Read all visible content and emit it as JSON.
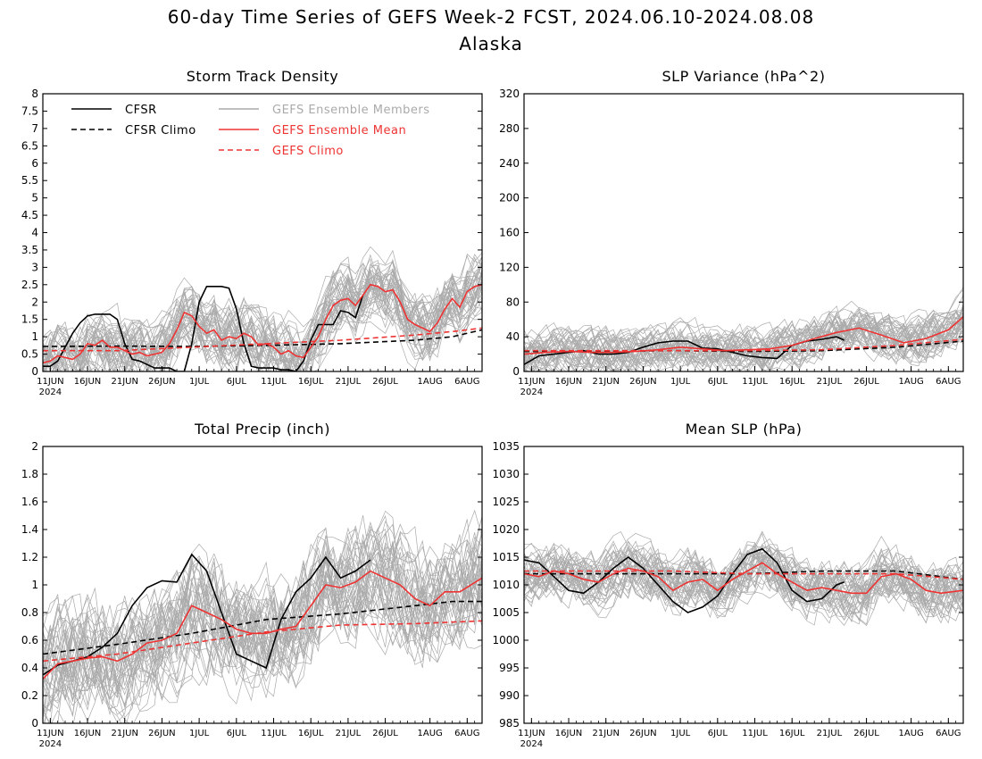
{
  "figure": {
    "title_line1": "60-day Time Series of GEFS Week-2 FCST, 2024.06.10-2024.08.08",
    "title_line2": "Alaska"
  },
  "colors": {
    "cfsr": "#000000",
    "members": "#aaaaaa",
    "ens_mean": "#ee3333",
    "frame": "#000000"
  },
  "legend": {
    "cfsr": "CFSR",
    "cfsr_climo": "CFSR Climo",
    "members": "GEFS Ensemble Members",
    "ens_mean": "GEFS Ensemble Mean",
    "gefs_climo": "GEFS Climo"
  },
  "x_axis": {
    "ticks": [
      {
        "day": 1,
        "label": "11JUN"
      },
      {
        "day": 6,
        "label": "16JUN"
      },
      {
        "day": 11,
        "label": "21JUN"
      },
      {
        "day": 16,
        "label": "26JUN"
      },
      {
        "day": 21,
        "label": "1JUL"
      },
      {
        "day": 26,
        "label": "6JUL"
      },
      {
        "day": 31,
        "label": "11JUL"
      },
      {
        "day": 36,
        "label": "16JUL"
      },
      {
        "day": 41,
        "label": "21JUL"
      },
      {
        "day": 46,
        "label": "26JUL"
      },
      {
        "day": 52,
        "label": "1AUG"
      },
      {
        "day": 57,
        "label": "6AUG"
      }
    ],
    "year": "2024",
    "range": [
      0,
      59
    ]
  },
  "chart_data": [
    {
      "type": "line",
      "title": "Storm Track Density",
      "ylim": [
        0,
        8
      ],
      "yticks": [
        "0",
        "0.5",
        "1",
        "1.5",
        "2",
        "2.5",
        "3",
        "3.5",
        "4",
        "4.5",
        "5",
        "5.5",
        "6",
        "6.5",
        "7",
        "7.5",
        "8"
      ],
      "x_unit": "days after 2024.06.10",
      "member_spread": {
        "low": 0,
        "high": 3.2
      },
      "series": [
        {
          "name": "CFSR",
          "x": [
            0,
            1,
            2,
            3,
            4,
            5,
            6,
            7,
            8,
            9,
            10,
            11,
            12,
            13,
            14,
            15,
            16,
            17,
            18,
            19,
            20,
            21,
            22,
            23,
            24,
            25,
            26,
            27,
            28,
            29,
            30,
            31,
            32,
            33,
            34,
            35,
            36,
            37,
            38,
            39,
            40,
            41,
            42,
            43
          ],
          "values": [
            0.15,
            0.15,
            0.3,
            0.7,
            1.1,
            1.4,
            1.6,
            1.65,
            1.65,
            1.65,
            1.5,
            0.8,
            0.35,
            0.3,
            0.2,
            0.1,
            0.1,
            0.1,
            0,
            0,
            0.8,
            2.0,
            2.45,
            2.45,
            2.45,
            2.4,
            1.8,
            0.8,
            0.15,
            0.1,
            0.1,
            0.1,
            0.05,
            0.05,
            0,
            0.3,
            0.9,
            1.35,
            1.35,
            1.35,
            1.75,
            1.7,
            1.55,
            2.2
          ]
        },
        {
          "name": "CFSR Climo",
          "x": [
            0,
            10,
            20,
            30,
            40,
            50,
            55,
            59
          ],
          "values": [
            0.72,
            0.73,
            0.72,
            0.75,
            0.8,
            0.9,
            1.0,
            1.2
          ]
        },
        {
          "name": "GEFS Ensemble Mean",
          "x": [
            0,
            1,
            2,
            3,
            4,
            5,
            6,
            7,
            8,
            9,
            10,
            11,
            12,
            13,
            14,
            15,
            16,
            17,
            18,
            19,
            20,
            21,
            22,
            23,
            24,
            25,
            26,
            27,
            28,
            29,
            30,
            31,
            32,
            33,
            34,
            35,
            36,
            37,
            38,
            39,
            40,
            41,
            42,
            43,
            44,
            45,
            46,
            47,
            48,
            49,
            50,
            51,
            52,
            53,
            54,
            55,
            56,
            57,
            58,
            59
          ],
          "values": [
            0.25,
            0.3,
            0.45,
            0.4,
            0.35,
            0.5,
            0.8,
            0.75,
            0.9,
            0.7,
            0.7,
            0.6,
            0.5,
            0.55,
            0.45,
            0.5,
            0.55,
            0.8,
            1.2,
            1.7,
            1.6,
            1.3,
            1.1,
            1.2,
            0.9,
            1.0,
            0.95,
            1.1,
            1.0,
            0.75,
            0.8,
            0.7,
            0.5,
            0.6,
            0.45,
            0.4,
            0.7,
            1.0,
            1.5,
            1.9,
            2.05,
            2.1,
            1.9,
            2.2,
            2.5,
            2.45,
            2.3,
            2.35,
            2.0,
            1.5,
            1.35,
            1.25,
            1.15,
            1.4,
            1.8,
            2.1,
            1.85,
            2.3,
            2.45,
            2.5
          ]
        },
        {
          "name": "GEFS Climo",
          "x": [
            0,
            10,
            20,
            30,
            40,
            50,
            55,
            59
          ],
          "values": [
            0.6,
            0.6,
            0.7,
            0.8,
            0.9,
            1.05,
            1.15,
            1.25
          ]
        }
      ]
    },
    {
      "type": "line",
      "title": "SLP Variance (hPa^2)",
      "ylim": [
        0,
        320
      ],
      "yticks": [
        "0",
        "40",
        "80",
        "120",
        "160",
        "200",
        "240",
        "280",
        "320"
      ],
      "x_unit": "days after 2024.06.10",
      "member_spread": {
        "low": 10,
        "high": 100
      },
      "series": [
        {
          "name": "CFSR",
          "x": [
            0,
            2,
            4,
            6,
            8,
            10,
            12,
            14,
            16,
            18,
            20,
            22,
            24,
            26,
            28,
            30,
            32,
            34,
            36,
            38,
            40,
            42,
            43
          ],
          "values": [
            8,
            18,
            20,
            22,
            24,
            20,
            20,
            22,
            28,
            33,
            35,
            35,
            27,
            26,
            22,
            18,
            16,
            15,
            30,
            35,
            37,
            40,
            36
          ]
        },
        {
          "name": "CFSR Climo",
          "x": [
            0,
            10,
            20,
            30,
            40,
            50,
            59
          ],
          "values": [
            23,
            23,
            24,
            23,
            24,
            28,
            35
          ]
        },
        {
          "name": "GEFS Ensemble Mean",
          "x": [
            0,
            3,
            6,
            9,
            12,
            15,
            18,
            21,
            24,
            27,
            30,
            33,
            36,
            39,
            42,
            45,
            48,
            51,
            54,
            57,
            59
          ],
          "values": [
            20,
            22,
            23,
            22,
            22,
            23,
            25,
            28,
            26,
            24,
            25,
            26,
            30,
            38,
            45,
            50,
            42,
            33,
            38,
            48,
            63
          ]
        },
        {
          "name": "GEFS Climo",
          "x": [
            0,
            10,
            20,
            30,
            40,
            50,
            59
          ],
          "values": [
            24,
            24,
            24,
            24,
            25,
            30,
            37
          ]
        }
      ]
    },
    {
      "type": "line",
      "title": "Total Precip (inch)",
      "ylim": [
        0,
        2
      ],
      "yticks": [
        "0",
        "0.2",
        "0.4",
        "0.6",
        "0.8",
        "1",
        "1.2",
        "1.4",
        "1.6",
        "1.8",
        "2"
      ],
      "x_unit": "days after 2024.06.10",
      "member_spread": {
        "low": 0.1,
        "high": 1.5
      },
      "series": [
        {
          "name": "CFSR",
          "x": [
            0,
            2,
            4,
            6,
            8,
            10,
            12,
            14,
            16,
            18,
            20,
            22,
            24,
            26,
            28,
            30,
            32,
            34,
            36,
            38,
            40,
            42,
            44
          ],
          "values": [
            0.35,
            0.42,
            0.45,
            0.48,
            0.55,
            0.65,
            0.85,
            0.98,
            1.03,
            1.02,
            1.22,
            1.1,
            0.8,
            0.5,
            0.45,
            0.4,
            0.75,
            0.95,
            1.05,
            1.2,
            1.05,
            1.1,
            1.18
          ]
        },
        {
          "name": "CFSR Climo",
          "x": [
            0,
            10,
            20,
            30,
            40,
            50,
            55,
            59
          ],
          "values": [
            0.5,
            0.57,
            0.65,
            0.75,
            0.79,
            0.85,
            0.88,
            0.88
          ]
        },
        {
          "name": "GEFS Ensemble Mean",
          "x": [
            0,
            2,
            4,
            6,
            8,
            10,
            12,
            14,
            16,
            18,
            20,
            22,
            24,
            26,
            28,
            30,
            32,
            34,
            36,
            38,
            40,
            42,
            44,
            46,
            48,
            50,
            52,
            54,
            56,
            59
          ],
          "values": [
            0.32,
            0.43,
            0.45,
            0.47,
            0.48,
            0.45,
            0.5,
            0.58,
            0.6,
            0.65,
            0.85,
            0.8,
            0.75,
            0.68,
            0.65,
            0.65,
            0.68,
            0.7,
            0.85,
            1.0,
            0.98,
            1.02,
            1.1,
            1.05,
            1.0,
            0.9,
            0.85,
            0.95,
            0.95,
            1.05
          ]
        },
        {
          "name": "GEFS Climo",
          "x": [
            0,
            10,
            20,
            30,
            40,
            50,
            59
          ],
          "values": [
            0.45,
            0.5,
            0.58,
            0.66,
            0.71,
            0.72,
            0.74
          ]
        }
      ]
    },
    {
      "type": "line",
      "title": "Mean SLP (hPa)",
      "ylim": [
        985,
        1035
      ],
      "yticks": [
        "985",
        "990",
        "995",
        "1000",
        "1005",
        "1010",
        "1015",
        "1020",
        "1025",
        "1030",
        "1035"
      ],
      "x_unit": "days after 2024.06.10",
      "member_spread": {
        "low": 1003,
        "high": 1020
      },
      "series": [
        {
          "name": "CFSR",
          "x": [
            0,
            2,
            4,
            6,
            8,
            10,
            12,
            14,
            16,
            18,
            20,
            22,
            24,
            26,
            28,
            30,
            32,
            34,
            36,
            38,
            40,
            42,
            43
          ],
          "values": [
            1014.5,
            1014,
            1011.5,
            1009,
            1008.5,
            1010.5,
            1013,
            1015,
            1013,
            1010,
            1007,
            1005,
            1006,
            1008,
            1012,
            1015.5,
            1016.5,
            1014,
            1009,
            1007,
            1007.5,
            1010,
            1010.5
          ]
        },
        {
          "name": "CFSR Climo",
          "x": [
            0,
            10,
            20,
            30,
            40,
            50,
            59
          ],
          "values": [
            1012,
            1012,
            1012,
            1012,
            1012.5,
            1012.5,
            1011
          ]
        },
        {
          "name": "GEFS Ensemble Mean",
          "x": [
            0,
            2,
            4,
            6,
            8,
            10,
            12,
            14,
            16,
            18,
            20,
            22,
            24,
            26,
            28,
            30,
            32,
            34,
            36,
            38,
            40,
            42,
            44,
            46,
            48,
            50,
            52,
            54,
            56,
            59
          ],
          "values": [
            1012,
            1011.5,
            1012.5,
            1012,
            1011,
            1010.5,
            1012,
            1013,
            1012.5,
            1011.5,
            1009,
            1010.5,
            1011,
            1009,
            1011,
            1012.5,
            1014,
            1012,
            1010.5,
            1009,
            1009.5,
            1009,
            1008.5,
            1008.5,
            1011.5,
            1012,
            1011,
            1009,
            1008.5,
            1009
          ]
        },
        {
          "name": "GEFS Climo",
          "x": [
            0,
            10,
            20,
            30,
            40,
            50,
            59
          ],
          "values": [
            1012.5,
            1012.5,
            1012.5,
            1012,
            1012,
            1012,
            1011
          ]
        }
      ]
    }
  ]
}
